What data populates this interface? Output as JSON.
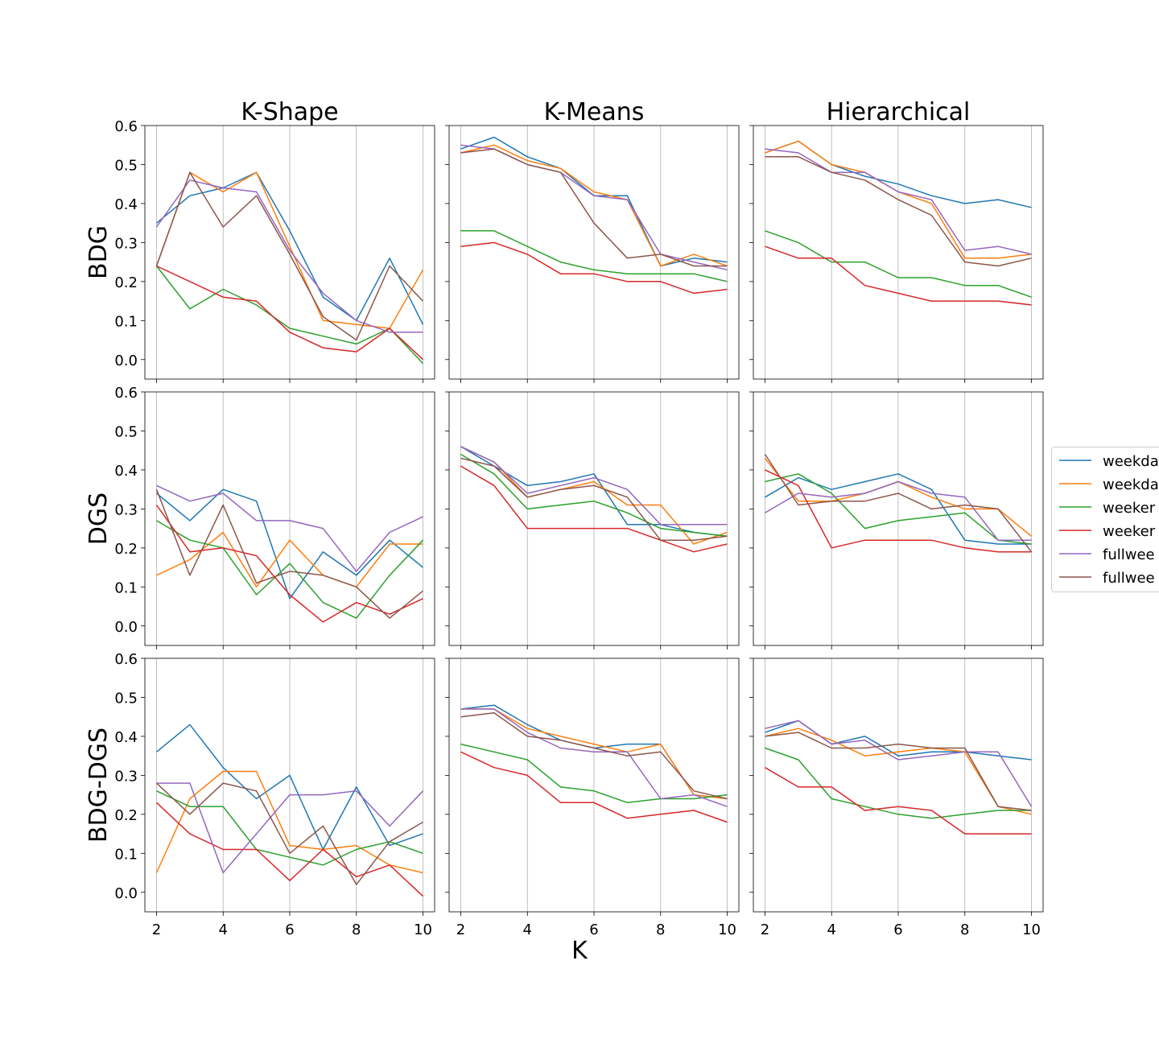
{
  "figure": {
    "xlabel": "K",
    "columns": [
      "K-Shape",
      "K-Means",
      "Hierarchical"
    ],
    "rows": [
      "BDG",
      "DGS",
      "BDG-DGS"
    ],
    "legend": {
      "placement": "right, clipped at edge",
      "entries": [
        "weekda",
        "weekda",
        "weeker",
        "weeker",
        "fullwee",
        "fullwee"
      ]
    },
    "series_colors": [
      "#1f77b4",
      "#ff7f0e",
      "#2ca02c",
      "#d62728",
      "#9467bd",
      "#8c564b"
    ]
  },
  "chart_data": [
    {
      "type": "line",
      "title": "K-Shape",
      "ylabel": "BDG",
      "xlabel": "",
      "x": [
        2,
        3,
        4,
        5,
        6,
        7,
        8,
        9,
        10
      ],
      "xticks": [
        2,
        4,
        6,
        8,
        10
      ],
      "yticks": [
        0.0,
        0.1,
        0.2,
        0.3,
        0.4,
        0.5,
        0.6
      ],
      "xlim": [
        1.65,
        10.35
      ],
      "ylim": [
        -0.05,
        0.6
      ],
      "grid": "vertical",
      "series": [
        {
          "values": [
            0.35,
            0.42,
            0.44,
            0.48,
            0.33,
            0.16,
            0.1,
            0.26,
            0.09
          ]
        },
        {
          "values": [
            0.24,
            0.48,
            0.43,
            0.48,
            0.29,
            0.1,
            0.09,
            0.08,
            0.23
          ]
        },
        {
          "values": [
            0.24,
            0.13,
            0.18,
            0.14,
            0.08,
            0.06,
            0.04,
            0.08,
            -0.01
          ]
        },
        {
          "values": [
            0.24,
            0.2,
            0.16,
            0.15,
            0.07,
            0.03,
            0.02,
            0.08,
            0.0
          ]
        },
        {
          "values": [
            0.34,
            0.46,
            0.44,
            0.43,
            0.28,
            0.17,
            0.1,
            0.07,
            0.07
          ]
        },
        {
          "values": [
            0.24,
            0.48,
            0.34,
            0.42,
            0.27,
            0.11,
            0.05,
            0.24,
            0.15
          ]
        }
      ]
    },
    {
      "type": "line",
      "title": "K-Means",
      "ylabel": "",
      "xlabel": "",
      "x": [
        2,
        3,
        4,
        5,
        6,
        7,
        8,
        9,
        10
      ],
      "xticks": [
        2,
        4,
        6,
        8,
        10
      ],
      "yticks": [
        0.0,
        0.1,
        0.2,
        0.3,
        0.4,
        0.5,
        0.6
      ],
      "xlim": [
        1.65,
        10.35
      ],
      "ylim": [
        -0.05,
        0.6
      ],
      "grid": "vertical",
      "series": [
        {
          "values": [
            0.54,
            0.57,
            0.52,
            0.49,
            0.42,
            0.42,
            0.24,
            0.26,
            0.25
          ]
        },
        {
          "values": [
            0.53,
            0.55,
            0.51,
            0.49,
            0.43,
            0.41,
            0.24,
            0.27,
            0.24
          ]
        },
        {
          "values": [
            0.33,
            0.33,
            0.29,
            0.25,
            0.23,
            0.22,
            0.22,
            0.22,
            0.2
          ]
        },
        {
          "values": [
            0.29,
            0.3,
            0.27,
            0.22,
            0.22,
            0.2,
            0.2,
            0.17,
            0.18
          ]
        },
        {
          "values": [
            0.55,
            0.54,
            0.5,
            0.48,
            0.42,
            0.41,
            0.27,
            0.25,
            0.23
          ]
        },
        {
          "values": [
            0.53,
            0.54,
            0.5,
            0.48,
            0.35,
            0.26,
            0.27,
            0.24,
            0.24
          ]
        }
      ]
    },
    {
      "type": "line",
      "title": "Hierarchical",
      "ylabel": "",
      "xlabel": "",
      "x": [
        2,
        3,
        4,
        5,
        6,
        7,
        8,
        9,
        10
      ],
      "xticks": [
        2,
        4,
        6,
        8,
        10
      ],
      "yticks": [
        0.0,
        0.1,
        0.2,
        0.3,
        0.4,
        0.5,
        0.6
      ],
      "xlim": [
        1.65,
        10.35
      ],
      "ylim": [
        -0.05,
        0.6
      ],
      "grid": "vertical",
      "series": [
        {
          "values": [
            0.53,
            0.56,
            0.5,
            0.47,
            0.45,
            0.42,
            0.4,
            0.41,
            0.39
          ]
        },
        {
          "values": [
            0.53,
            0.56,
            0.5,
            0.48,
            0.43,
            0.4,
            0.26,
            0.26,
            0.27
          ]
        },
        {
          "values": [
            0.33,
            0.3,
            0.25,
            0.25,
            0.21,
            0.21,
            0.19,
            0.19,
            0.16
          ]
        },
        {
          "values": [
            0.29,
            0.26,
            0.26,
            0.19,
            0.17,
            0.15,
            0.15,
            0.15,
            0.14
          ]
        },
        {
          "values": [
            0.54,
            0.53,
            0.48,
            0.48,
            0.43,
            0.41,
            0.28,
            0.29,
            0.27
          ]
        },
        {
          "values": [
            0.52,
            0.52,
            0.48,
            0.46,
            0.41,
            0.37,
            0.25,
            0.24,
            0.26
          ]
        }
      ]
    },
    {
      "type": "line",
      "title": "",
      "ylabel": "DGS",
      "xlabel": "",
      "x": [
        2,
        3,
        4,
        5,
        6,
        7,
        8,
        9,
        10
      ],
      "xticks": [
        2,
        4,
        6,
        8,
        10
      ],
      "yticks": [
        0.0,
        0.1,
        0.2,
        0.3,
        0.4,
        0.5,
        0.6
      ],
      "xlim": [
        1.65,
        10.35
      ],
      "ylim": [
        -0.05,
        0.6
      ],
      "grid": "vertical",
      "series": [
        {
          "values": [
            0.34,
            0.27,
            0.35,
            0.32,
            0.07,
            0.19,
            0.13,
            0.22,
            0.15
          ]
        },
        {
          "values": [
            0.13,
            0.17,
            0.24,
            0.1,
            0.22,
            0.13,
            0.1,
            0.21,
            0.21
          ]
        },
        {
          "values": [
            0.27,
            0.22,
            0.2,
            0.08,
            0.16,
            0.06,
            0.02,
            0.13,
            0.22
          ]
        },
        {
          "values": [
            0.31,
            0.19,
            0.2,
            0.18,
            0.08,
            0.01,
            0.06,
            0.03,
            0.07
          ]
        },
        {
          "values": [
            0.36,
            0.32,
            0.34,
            0.27,
            0.27,
            0.25,
            0.14,
            0.24,
            0.28
          ]
        },
        {
          "values": [
            0.35,
            0.13,
            0.31,
            0.11,
            0.14,
            0.13,
            0.1,
            0.02,
            0.09
          ]
        }
      ]
    },
    {
      "type": "line",
      "title": "",
      "ylabel": "",
      "xlabel": "",
      "x": [
        2,
        3,
        4,
        5,
        6,
        7,
        8,
        9,
        10
      ],
      "xticks": [
        2,
        4,
        6,
        8,
        10
      ],
      "yticks": [
        0.0,
        0.1,
        0.2,
        0.3,
        0.4,
        0.5,
        0.6
      ],
      "xlim": [
        1.65,
        10.35
      ],
      "ylim": [
        -0.05,
        0.6
      ],
      "grid": "vertical",
      "series": [
        {
          "values": [
            0.46,
            0.41,
            0.36,
            0.37,
            0.39,
            0.26,
            0.26,
            0.24,
            0.23
          ]
        },
        {
          "values": [
            0.46,
            0.42,
            0.33,
            0.35,
            0.37,
            0.31,
            0.31,
            0.21,
            0.24
          ]
        },
        {
          "values": [
            0.44,
            0.39,
            0.3,
            0.31,
            0.32,
            0.29,
            0.25,
            0.24,
            0.23
          ]
        },
        {
          "values": [
            0.41,
            0.36,
            0.25,
            0.25,
            0.25,
            0.25,
            0.22,
            0.19,
            0.21
          ]
        },
        {
          "values": [
            0.46,
            0.42,
            0.34,
            0.36,
            0.38,
            0.35,
            0.26,
            0.26,
            0.26
          ]
        },
        {
          "values": [
            0.43,
            0.41,
            0.33,
            0.35,
            0.36,
            0.33,
            0.22,
            0.22,
            0.23
          ]
        }
      ]
    },
    {
      "type": "line",
      "title": "",
      "ylabel": "",
      "xlabel": "",
      "x": [
        2,
        3,
        4,
        5,
        6,
        7,
        8,
        9,
        10
      ],
      "xticks": [
        2,
        4,
        6,
        8,
        10
      ],
      "yticks": [
        0.0,
        0.1,
        0.2,
        0.3,
        0.4,
        0.5,
        0.6
      ],
      "xlim": [
        1.65,
        10.35
      ],
      "ylim": [
        -0.05,
        0.6
      ],
      "grid": "vertical",
      "series": [
        {
          "values": [
            0.33,
            0.38,
            0.35,
            0.37,
            0.39,
            0.35,
            0.22,
            0.21,
            0.21
          ]
        },
        {
          "values": [
            0.43,
            0.32,
            0.32,
            0.34,
            0.37,
            0.33,
            0.3,
            0.3,
            0.23
          ]
        },
        {
          "values": [
            0.37,
            0.39,
            0.34,
            0.25,
            0.27,
            0.28,
            0.29,
            0.22,
            0.21
          ]
        },
        {
          "values": [
            0.4,
            0.36,
            0.2,
            0.22,
            0.22,
            0.22,
            0.2,
            0.19,
            0.19
          ]
        },
        {
          "values": [
            0.29,
            0.34,
            0.33,
            0.34,
            0.37,
            0.34,
            0.33,
            0.22,
            0.22
          ]
        },
        {
          "values": [
            0.44,
            0.31,
            0.32,
            0.32,
            0.34,
            0.3,
            0.31,
            0.3,
            0.19
          ]
        }
      ]
    },
    {
      "type": "line",
      "title": "",
      "ylabel": "BDG-DGS",
      "xlabel": "",
      "x": [
        2,
        3,
        4,
        5,
        6,
        7,
        8,
        9,
        10
      ],
      "xticks": [
        2,
        4,
        6,
        8,
        10
      ],
      "yticks": [
        0.0,
        0.1,
        0.2,
        0.3,
        0.4,
        0.5,
        0.6
      ],
      "xlim": [
        1.65,
        10.35
      ],
      "ylim": [
        -0.05,
        0.6
      ],
      "grid": "vertical",
      "series": [
        {
          "values": [
            0.36,
            0.43,
            0.32,
            0.24,
            0.3,
            0.11,
            0.27,
            0.12,
            0.15
          ]
        },
        {
          "values": [
            0.05,
            0.24,
            0.31,
            0.31,
            0.12,
            0.11,
            0.12,
            0.07,
            0.05
          ]
        },
        {
          "values": [
            0.26,
            0.22,
            0.22,
            0.11,
            0.09,
            0.07,
            0.11,
            0.13,
            0.1
          ]
        },
        {
          "values": [
            0.23,
            0.15,
            0.11,
            0.11,
            0.03,
            0.11,
            0.04,
            0.07,
            -0.01
          ]
        },
        {
          "values": [
            0.28,
            0.28,
            0.05,
            0.15,
            0.25,
            0.25,
            0.26,
            0.17,
            0.26
          ]
        },
        {
          "values": [
            0.28,
            0.2,
            0.28,
            0.26,
            0.1,
            0.17,
            0.02,
            0.13,
            0.18
          ]
        }
      ]
    },
    {
      "type": "line",
      "title": "",
      "ylabel": "",
      "xlabel": "",
      "x": [
        2,
        3,
        4,
        5,
        6,
        7,
        8,
        9,
        10
      ],
      "xticks": [
        2,
        4,
        6,
        8,
        10
      ],
      "yticks": [
        0.0,
        0.1,
        0.2,
        0.3,
        0.4,
        0.5,
        0.6
      ],
      "xlim": [
        1.65,
        10.35
      ],
      "ylim": [
        -0.05,
        0.6
      ],
      "grid": "vertical",
      "series": [
        {
          "values": [
            0.47,
            0.48,
            0.43,
            0.39,
            0.37,
            0.38,
            0.38,
            0.25,
            0.24
          ]
        },
        {
          "values": [
            0.47,
            0.47,
            0.42,
            0.4,
            0.38,
            0.36,
            0.38,
            0.25,
            0.24
          ]
        },
        {
          "values": [
            0.38,
            0.36,
            0.34,
            0.27,
            0.26,
            0.23,
            0.24,
            0.24,
            0.25
          ]
        },
        {
          "values": [
            0.36,
            0.32,
            0.3,
            0.23,
            0.23,
            0.19,
            0.2,
            0.21,
            0.18
          ]
        },
        {
          "values": [
            0.47,
            0.47,
            0.41,
            0.37,
            0.36,
            0.36,
            0.24,
            0.25,
            0.22
          ]
        },
        {
          "values": [
            0.45,
            0.46,
            0.4,
            0.39,
            0.37,
            0.35,
            0.36,
            0.26,
            0.24
          ]
        }
      ]
    },
    {
      "type": "line",
      "title": "",
      "ylabel": "",
      "xlabel": "",
      "x": [
        2,
        3,
        4,
        5,
        6,
        7,
        8,
        9,
        10
      ],
      "xticks": [
        2,
        4,
        6,
        8,
        10
      ],
      "yticks": [
        0.0,
        0.1,
        0.2,
        0.3,
        0.4,
        0.5,
        0.6
      ],
      "xlim": [
        1.65,
        10.35
      ],
      "ylim": [
        -0.05,
        0.6
      ],
      "grid": "vertical",
      "series": [
        {
          "values": [
            0.41,
            0.44,
            0.38,
            0.4,
            0.35,
            0.36,
            0.36,
            0.35,
            0.34
          ]
        },
        {
          "values": [
            0.4,
            0.42,
            0.39,
            0.35,
            0.36,
            0.37,
            0.36,
            0.22,
            0.2
          ]
        },
        {
          "values": [
            0.37,
            0.34,
            0.24,
            0.22,
            0.2,
            0.19,
            0.2,
            0.21,
            0.21
          ]
        },
        {
          "values": [
            0.32,
            0.27,
            0.27,
            0.21,
            0.22,
            0.21,
            0.15,
            0.15,
            0.15
          ]
        },
        {
          "values": [
            0.42,
            0.44,
            0.38,
            0.39,
            0.34,
            0.35,
            0.36,
            0.36,
            0.22
          ]
        },
        {
          "values": [
            0.4,
            0.41,
            0.37,
            0.37,
            0.38,
            0.37,
            0.37,
            0.22,
            0.21
          ]
        }
      ]
    }
  ]
}
